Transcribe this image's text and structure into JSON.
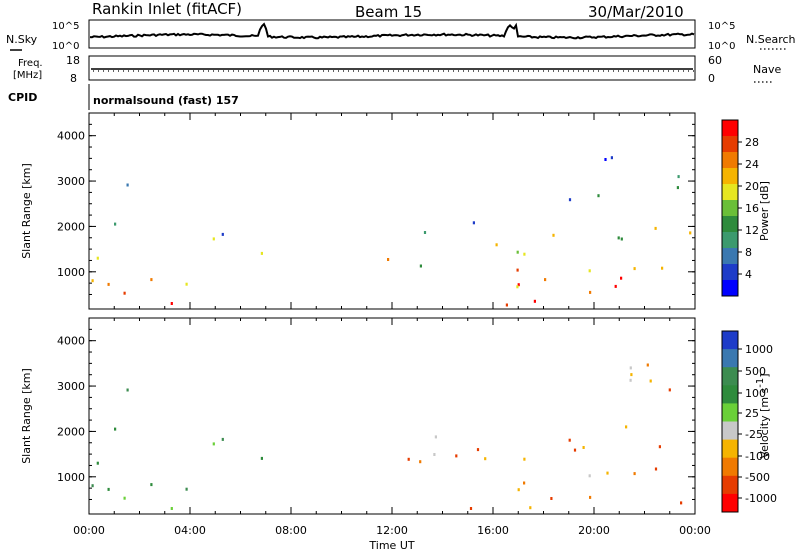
{
  "header": {
    "title": "Rankin Inlet (fitACF)",
    "beam": "Beam 15",
    "date": "30/Mar/2010"
  },
  "noise_panel": {
    "left_label": "N.Sky",
    "right_label": "N.Search",
    "left_ticks": [
      "10^5",
      "10^0"
    ],
    "right_ticks": [
      "10^5",
      "10^0"
    ]
  },
  "freq_panel": {
    "left_label_1": "Freq.",
    "left_label_2": "[MHz]",
    "left_ticks": [
      "18",
      "8"
    ],
    "right_label": "Nave",
    "right_ticks": [
      "60",
      "0"
    ]
  },
  "cpid": {
    "label": "CPID",
    "value": "normalsound (fast) 157"
  },
  "chart_data": [
    {
      "type": "heatmap",
      "panel": "power",
      "ylabel": "Slant Range [km]",
      "ylim": [
        180,
        4500
      ],
      "yticks": [
        "1000",
        "2000",
        "3000",
        "4000"
      ],
      "xlim_hours": [
        0,
        24
      ],
      "colorbar": {
        "label": "Power [dB]",
        "ticks": [
          "4",
          "8",
          "12",
          "16",
          "20",
          "24",
          "28"
        ],
        "colors": [
          "#0000ff",
          "#1e3cc8",
          "#3a78b0",
          "#3c9a6e",
          "#2e8b3c",
          "#6abf38",
          "#e6e620",
          "#f5b400",
          "#f07a00",
          "#e63c00",
          "#ff0000"
        ]
      }
    },
    {
      "type": "heatmap",
      "panel": "velocity",
      "ylabel": "Slant Range [km]",
      "ylim": [
        180,
        4500
      ],
      "yticks": [
        "1000",
        "2000",
        "3000",
        "4000"
      ],
      "xlim_hours": [
        0,
        24
      ],
      "colorbar": {
        "label_1": "Velocity",
        "label_2": "[m s",
        "label_sup": "-1",
        "label_3": "]",
        "ticks": [
          "1000",
          "500",
          "100",
          "25",
          "-25",
          "-100",
          "-500",
          "-1000"
        ],
        "colors": [
          "#1e3cc8",
          "#3a78b0",
          "#3c8c50",
          "#2e8b3c",
          "#6ad038",
          "#c8c8c8",
          "#f5b400",
          "#f07a00",
          "#e63c00",
          "#ff0000"
        ]
      }
    }
  ],
  "x_axis": {
    "label": "Time UT",
    "ticks": [
      "00:00",
      "04:00",
      "08:00",
      "12:00",
      "16:00",
      "20:00",
      "00:00"
    ]
  }
}
